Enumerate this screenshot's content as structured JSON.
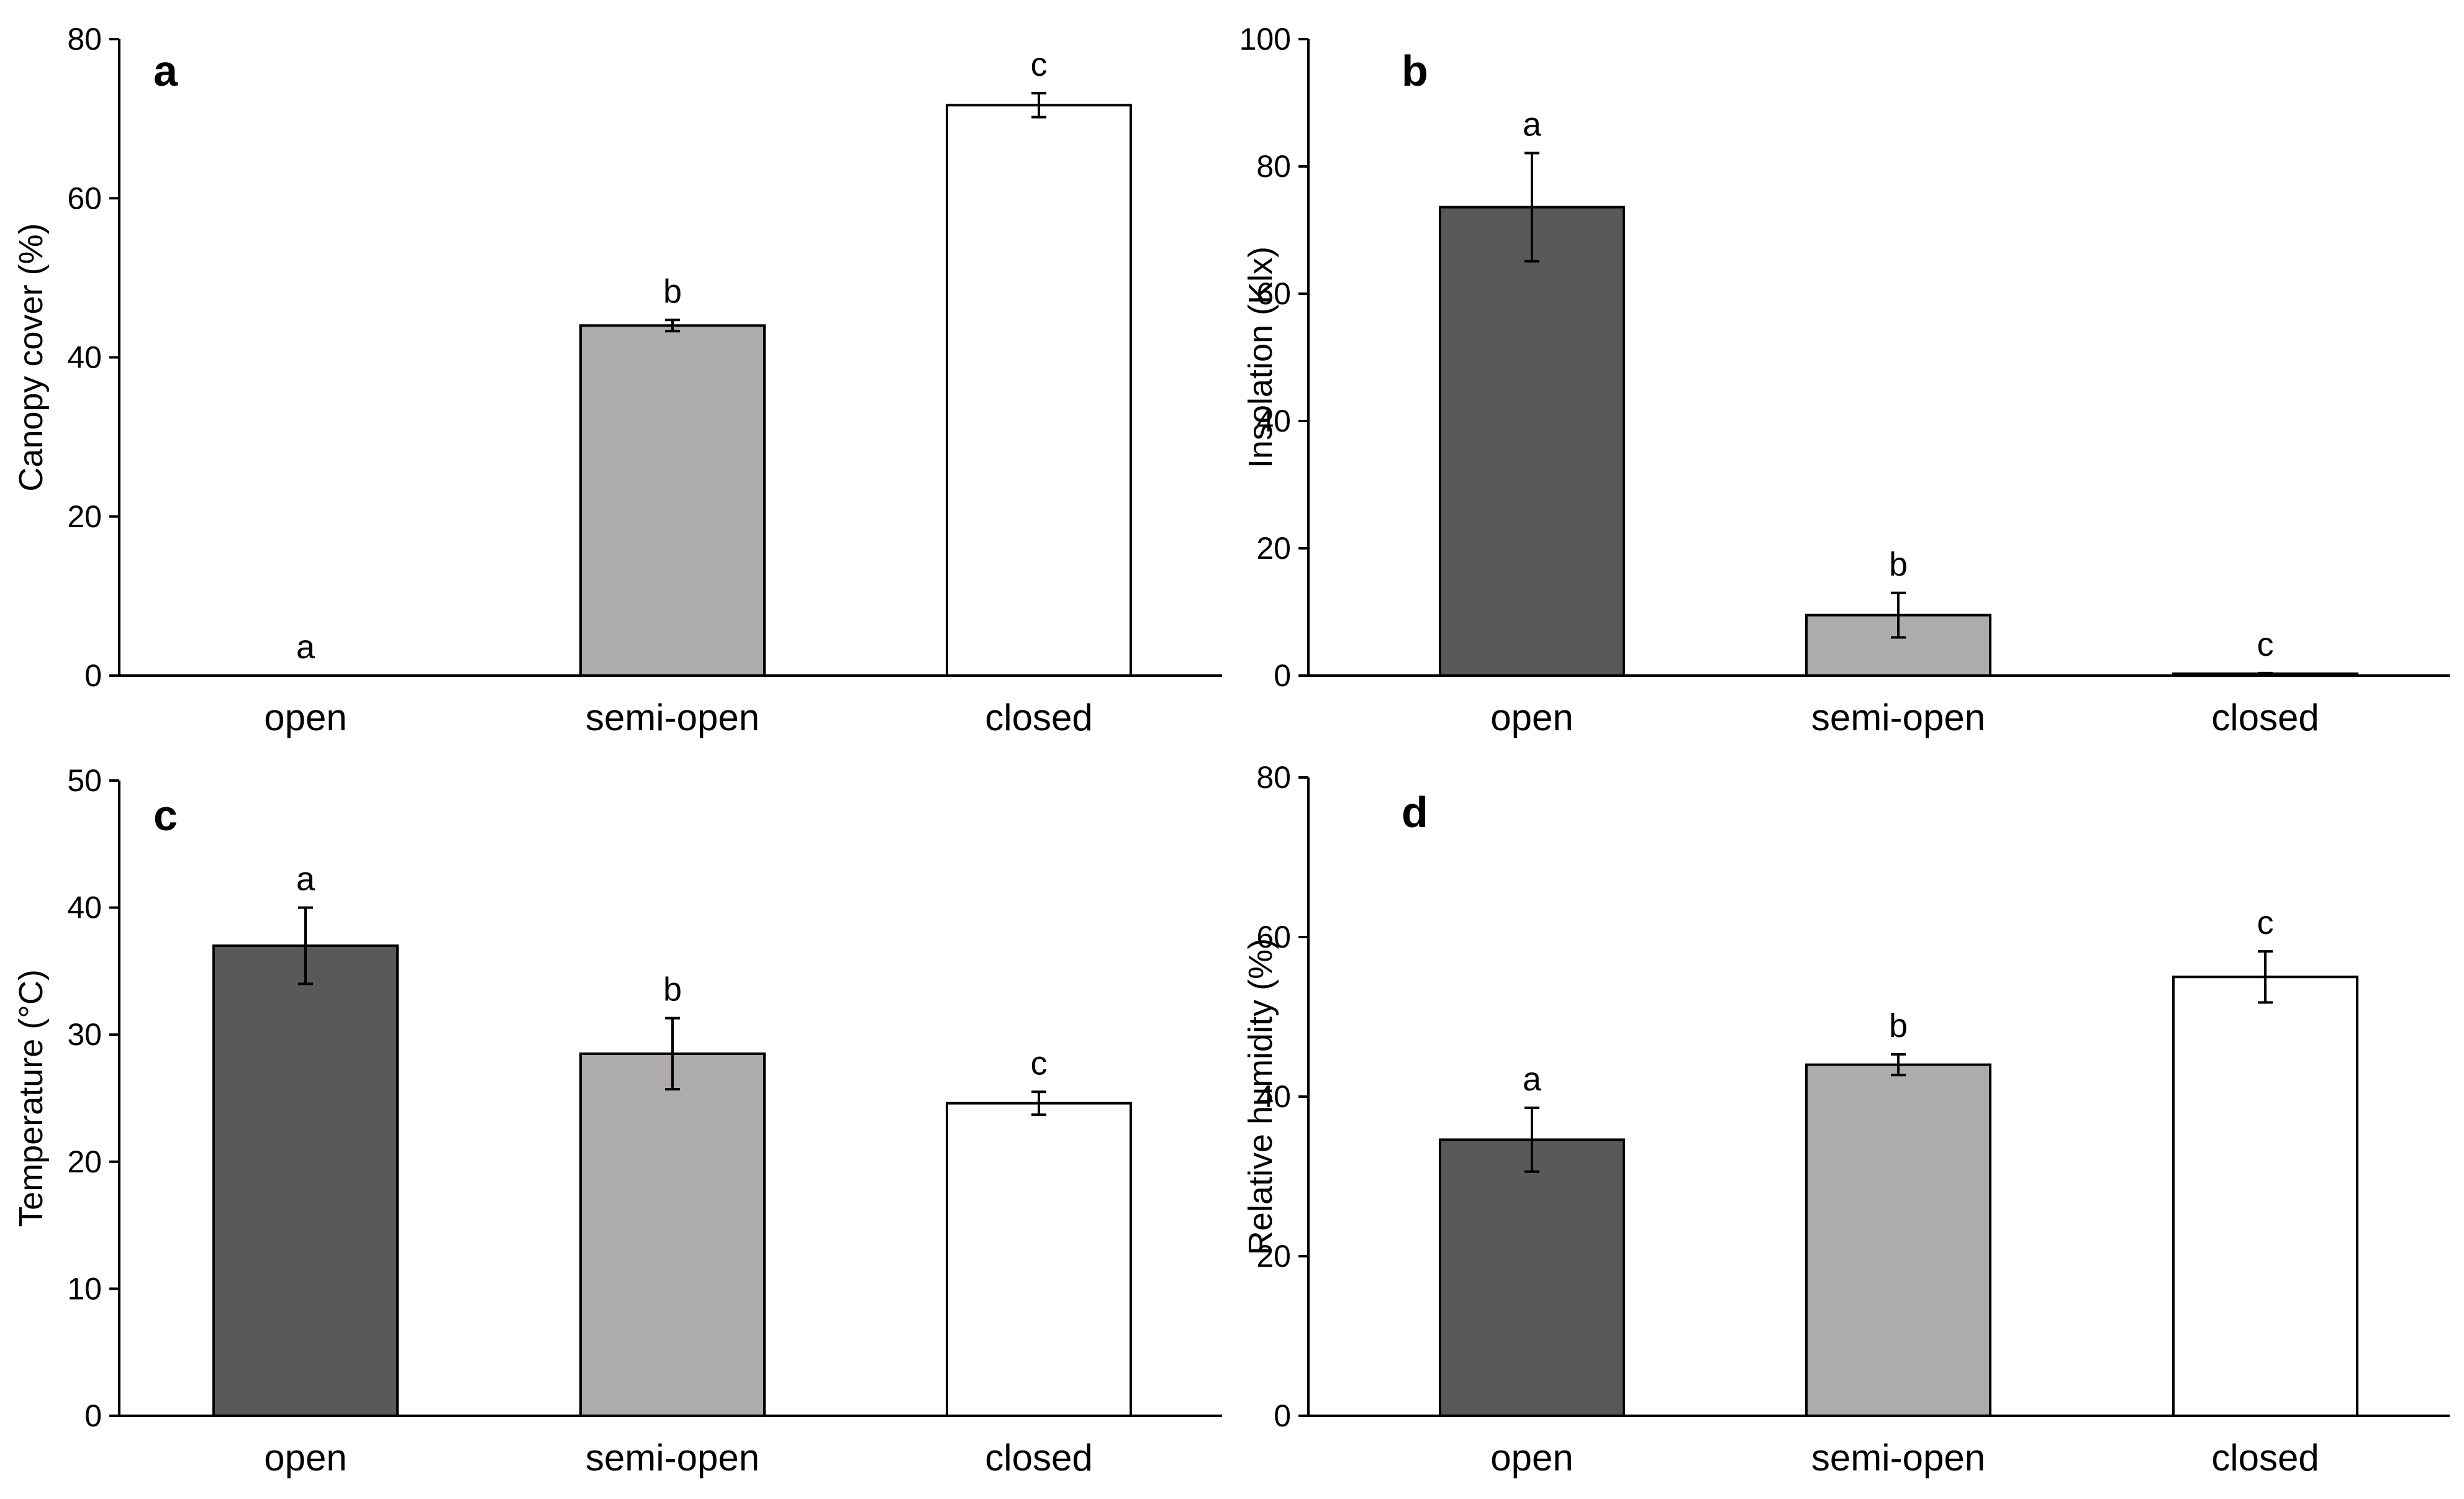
{
  "chart_data": [
    {
      "panel": "a",
      "type": "bar",
      "title": "",
      "xlabel": "",
      "ylabel": "Canopy cover (%)",
      "categories": [
        "open",
        "semi-open",
        "closed"
      ],
      "values": [
        0,
        44,
        71.7
      ],
      "errors": [
        0,
        0.7,
        1.5
      ],
      "significance": [
        "a",
        "b",
        "c"
      ],
      "colors": [
        "#595959",
        "#aeabab",
        "#ffffff"
      ],
      "ylim": [
        0,
        80
      ],
      "yticks": [
        0,
        20,
        40,
        60,
        80
      ],
      "grid": false
    },
    {
      "panel": "b",
      "type": "bar",
      "title": "",
      "xlabel": "",
      "ylabel": "Insolation (Klx)",
      "categories": [
        "open",
        "semi-open",
        "closed"
      ],
      "values": [
        73.6,
        9.5,
        0.3
      ],
      "errors": [
        8.5,
        3.5,
        0.1
      ],
      "significance": [
        "a",
        "b",
        "c"
      ],
      "colors": [
        "#595959",
        "#aeabab",
        "#ffffff"
      ],
      "ylim": [
        0,
        100
      ],
      "yticks": [
        0,
        20,
        40,
        60,
        80,
        100
      ],
      "grid": false
    },
    {
      "panel": "c",
      "type": "bar",
      "title": "",
      "xlabel": "",
      "ylabel": "Temperature (°C)",
      "categories": [
        "open",
        "semi-open",
        "closed"
      ],
      "values": [
        37,
        28.5,
        24.6
      ],
      "errors": [
        3,
        2.8,
        0.9
      ],
      "significance": [
        "a",
        "b",
        "c"
      ],
      "colors": [
        "#595959",
        "#aeabab",
        "#ffffff"
      ],
      "ylim": [
        0,
        50
      ],
      "yticks": [
        0,
        10,
        20,
        30,
        40,
        50
      ],
      "grid": false
    },
    {
      "panel": "d",
      "type": "bar",
      "title": "",
      "xlabel": "",
      "ylabel": "Relative humidity (%)",
      "categories": [
        "open",
        "semi-open",
        "closed"
      ],
      "values": [
        34.6,
        44,
        55
      ],
      "errors": [
        4,
        1.3,
        3.2
      ],
      "significance": [
        "a",
        "b",
        "c"
      ],
      "colors": [
        "#595959",
        "#aeabab",
        "#ffffff"
      ],
      "ylim": [
        0,
        80
      ],
      "yticks": [
        0,
        20,
        40,
        60,
        80
      ],
      "grid": false
    }
  ]
}
